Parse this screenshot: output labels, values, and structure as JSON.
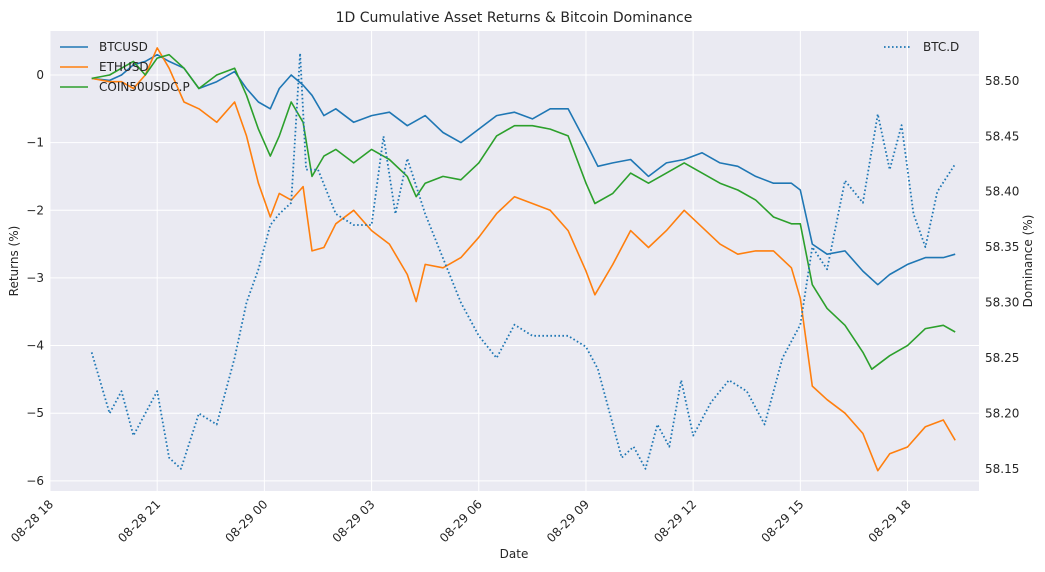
{
  "chart_data": {
    "type": "line",
    "title": "1D Cumulative Asset Returns & Bitcoin Dominance",
    "xlabel": "Date",
    "ylabel_left": "Returns (%)",
    "ylabel_right": "Dominance (%)",
    "grid": true,
    "legend_left_placement": "top-left",
    "legend_right_placement": "top-right",
    "background_color": "#eaeaf2",
    "x_range": [
      "08-28 18:00",
      "08-29 20:00"
    ],
    "ylim_left": [
      -6.15,
      0.65
    ],
    "ylim_right": [
      58.13,
      58.545
    ],
    "x_ticks": [
      "08-28 18",
      "08-28 21",
      "08-29 00",
      "08-29 03",
      "08-29 06",
      "08-29 09",
      "08-29 12",
      "08-29 15",
      "08-29 18"
    ],
    "y_ticks_left": [
      "0",
      "−1",
      "−2",
      "−3",
      "−4",
      "−5",
      "−6"
    ],
    "y_ticks_right": [
      "58.50",
      "58.45",
      "58.40",
      "58.35",
      "58.30",
      "58.25",
      "58.20",
      "58.15"
    ],
    "series": [
      {
        "name": "BTCUSD",
        "axis": "left",
        "color": "#1f77b4",
        "style": "solid",
        "points": [
          [
            "08-28 19:10",
            -0.05
          ],
          [
            "08-28 19:40",
            -0.08
          ],
          [
            "08-28 20:00",
            0.0
          ],
          [
            "08-28 20:20",
            0.15
          ],
          [
            "08-28 20:40",
            0.2
          ],
          [
            "08-28 21:00",
            0.3
          ],
          [
            "08-28 21:20",
            0.2
          ],
          [
            "08-28 21:45",
            0.1
          ],
          [
            "08-28 22:10",
            -0.2
          ],
          [
            "08-28 22:40",
            -0.1
          ],
          [
            "08-28 23:10",
            0.05
          ],
          [
            "08-28 23:30",
            -0.2
          ],
          [
            "08-28 23:50",
            -0.4
          ],
          [
            "08-29 00:10",
            -0.5
          ],
          [
            "08-29 00:25",
            -0.2
          ],
          [
            "08-29 00:45",
            0.0
          ],
          [
            "08-29 01:05",
            -0.15
          ],
          [
            "08-29 01:20",
            -0.3
          ],
          [
            "08-29 01:40",
            -0.6
          ],
          [
            "08-29 02:00",
            -0.5
          ],
          [
            "08-29 02:30",
            -0.7
          ],
          [
            "08-29 03:00",
            -0.6
          ],
          [
            "08-29 03:30",
            -0.55
          ],
          [
            "08-29 04:00",
            -0.75
          ],
          [
            "08-29 04:30",
            -0.6
          ],
          [
            "08-29 05:00",
            -0.85
          ],
          [
            "08-29 05:30",
            -1.0
          ],
          [
            "08-29 06:00",
            -0.8
          ],
          [
            "08-29 06:30",
            -0.6
          ],
          [
            "08-29 07:00",
            -0.55
          ],
          [
            "08-29 07:30",
            -0.65
          ],
          [
            "08-29 08:00",
            -0.5
          ],
          [
            "08-29 08:30",
            -0.5
          ],
          [
            "08-29 09:00",
            -1.0
          ],
          [
            "08-29 09:20",
            -1.35
          ],
          [
            "08-29 09:45",
            -1.3
          ],
          [
            "08-29 10:15",
            -1.25
          ],
          [
            "08-29 10:45",
            -1.5
          ],
          [
            "08-29 11:15",
            -1.3
          ],
          [
            "08-29 11:45",
            -1.25
          ],
          [
            "08-29 12:15",
            -1.15
          ],
          [
            "08-29 12:45",
            -1.3
          ],
          [
            "08-29 13:15",
            -1.35
          ],
          [
            "08-29 13:45",
            -1.5
          ],
          [
            "08-29 14:15",
            -1.6
          ],
          [
            "08-29 14:45",
            -1.6
          ],
          [
            "08-29 15:00",
            -1.7
          ],
          [
            "08-29 15:20",
            -2.5
          ],
          [
            "08-29 15:45",
            -2.65
          ],
          [
            "08-29 16:15",
            -2.6
          ],
          [
            "08-29 16:45",
            -2.9
          ],
          [
            "08-29 17:10",
            -3.1
          ],
          [
            "08-29 17:30",
            -2.95
          ],
          [
            "08-29 18:00",
            -2.8
          ],
          [
            "08-29 18:30",
            -2.7
          ],
          [
            "08-29 19:00",
            -2.7
          ],
          [
            "08-29 19:20",
            -2.65
          ]
        ]
      },
      {
        "name": "ETHUSD",
        "axis": "left",
        "color": "#ff7f0e",
        "style": "solid",
        "points": [
          [
            "08-28 19:10",
            -0.05
          ],
          [
            "08-28 19:40",
            -0.1
          ],
          [
            "08-28 20:00",
            -0.1
          ],
          [
            "08-28 20:20",
            -0.2
          ],
          [
            "08-28 20:40",
            0.0
          ],
          [
            "08-28 21:00",
            0.4
          ],
          [
            "08-28 21:20",
            0.1
          ],
          [
            "08-28 21:45",
            -0.4
          ],
          [
            "08-28 22:10",
            -0.5
          ],
          [
            "08-28 22:40",
            -0.7
          ],
          [
            "08-28 23:10",
            -0.4
          ],
          [
            "08-28 23:30",
            -0.9
          ],
          [
            "08-28 23:50",
            -1.6
          ],
          [
            "08-29 00:10",
            -2.1
          ],
          [
            "08-29 00:25",
            -1.75
          ],
          [
            "08-29 00:45",
            -1.85
          ],
          [
            "08-29 01:05",
            -1.65
          ],
          [
            "08-29 01:20",
            -2.6
          ],
          [
            "08-29 01:40",
            -2.55
          ],
          [
            "08-29 02:00",
            -2.2
          ],
          [
            "08-29 02:30",
            -2.0
          ],
          [
            "08-29 03:00",
            -2.3
          ],
          [
            "08-29 03:30",
            -2.5
          ],
          [
            "08-29 04:00",
            -2.95
          ],
          [
            "08-29 04:15",
            -3.35
          ],
          [
            "08-29 04:30",
            -2.8
          ],
          [
            "08-29 05:00",
            -2.85
          ],
          [
            "08-29 05:30",
            -2.7
          ],
          [
            "08-29 06:00",
            -2.4
          ],
          [
            "08-29 06:30",
            -2.05
          ],
          [
            "08-29 07:00",
            -1.8
          ],
          [
            "08-29 07:30",
            -1.9
          ],
          [
            "08-29 08:00",
            -2.0
          ],
          [
            "08-29 08:30",
            -2.3
          ],
          [
            "08-29 09:00",
            -2.9
          ],
          [
            "08-29 09:15",
            -3.25
          ],
          [
            "08-29 09:45",
            -2.8
          ],
          [
            "08-29 10:15",
            -2.3
          ],
          [
            "08-29 10:45",
            -2.55
          ],
          [
            "08-29 11:15",
            -2.3
          ],
          [
            "08-29 11:45",
            -2.0
          ],
          [
            "08-29 12:15",
            -2.25
          ],
          [
            "08-29 12:45",
            -2.5
          ],
          [
            "08-29 13:15",
            -2.65
          ],
          [
            "08-29 13:45",
            -2.6
          ],
          [
            "08-29 14:15",
            -2.6
          ],
          [
            "08-29 14:45",
            -2.85
          ],
          [
            "08-29 15:00",
            -3.3
          ],
          [
            "08-29 15:20",
            -4.6
          ],
          [
            "08-29 15:45",
            -4.8
          ],
          [
            "08-29 16:15",
            -5.0
          ],
          [
            "08-29 16:45",
            -5.3
          ],
          [
            "08-29 17:10",
            -5.85
          ],
          [
            "08-29 17:30",
            -5.6
          ],
          [
            "08-29 18:00",
            -5.5
          ],
          [
            "08-29 18:30",
            -5.2
          ],
          [
            "08-29 19:00",
            -5.1
          ],
          [
            "08-29 19:20",
            -5.4
          ]
        ]
      },
      {
        "name": "COIN50USDC.P",
        "axis": "left",
        "color": "#2ca02c",
        "style": "solid",
        "points": [
          [
            "08-28 19:10",
            -0.05
          ],
          [
            "08-28 19:40",
            0.0
          ],
          [
            "08-28 20:00",
            0.1
          ],
          [
            "08-28 20:20",
            0.2
          ],
          [
            "08-28 20:40",
            0.0
          ],
          [
            "08-28 21:00",
            0.25
          ],
          [
            "08-28 21:20",
            0.3
          ],
          [
            "08-28 21:45",
            0.1
          ],
          [
            "08-28 22:10",
            -0.2
          ],
          [
            "08-28 22:40",
            0.0
          ],
          [
            "08-28 23:10",
            0.1
          ],
          [
            "08-28 23:30",
            -0.3
          ],
          [
            "08-28 23:50",
            -0.8
          ],
          [
            "08-29 00:10",
            -1.2
          ],
          [
            "08-29 00:25",
            -0.9
          ],
          [
            "08-29 00:45",
            -0.4
          ],
          [
            "08-29 01:05",
            -0.7
          ],
          [
            "08-29 01:20",
            -1.5
          ],
          [
            "08-29 01:40",
            -1.2
          ],
          [
            "08-29 02:00",
            -1.1
          ],
          [
            "08-29 02:30",
            -1.3
          ],
          [
            "08-29 03:00",
            -1.1
          ],
          [
            "08-29 03:30",
            -1.25
          ],
          [
            "08-29 04:00",
            -1.5
          ],
          [
            "08-29 04:15",
            -1.8
          ],
          [
            "08-29 04:30",
            -1.6
          ],
          [
            "08-29 05:00",
            -1.5
          ],
          [
            "08-29 05:30",
            -1.55
          ],
          [
            "08-29 06:00",
            -1.3
          ],
          [
            "08-29 06:30",
            -0.9
          ],
          [
            "08-29 07:00",
            -0.75
          ],
          [
            "08-29 07:30",
            -0.75
          ],
          [
            "08-29 08:00",
            -0.8
          ],
          [
            "08-29 08:30",
            -0.9
          ],
          [
            "08-29 09:00",
            -1.6
          ],
          [
            "08-29 09:15",
            -1.9
          ],
          [
            "08-29 09:45",
            -1.75
          ],
          [
            "08-29 10:15",
            -1.45
          ],
          [
            "08-29 10:45",
            -1.6
          ],
          [
            "08-29 11:15",
            -1.45
          ],
          [
            "08-29 11:45",
            -1.3
          ],
          [
            "08-29 12:15",
            -1.45
          ],
          [
            "08-29 12:45",
            -1.6
          ],
          [
            "08-29 13:15",
            -1.7
          ],
          [
            "08-29 13:45",
            -1.85
          ],
          [
            "08-29 14:15",
            -2.1
          ],
          [
            "08-29 14:45",
            -2.2
          ],
          [
            "08-29 15:00",
            -2.2
          ],
          [
            "08-29 15:20",
            -3.1
          ],
          [
            "08-29 15:45",
            -3.45
          ],
          [
            "08-29 16:15",
            -3.7
          ],
          [
            "08-29 16:45",
            -4.1
          ],
          [
            "08-29 17:00",
            -4.35
          ],
          [
            "08-29 17:30",
            -4.15
          ],
          [
            "08-29 18:00",
            -4.0
          ],
          [
            "08-29 18:30",
            -3.75
          ],
          [
            "08-29 19:00",
            -3.7
          ],
          [
            "08-29 19:20",
            -3.8
          ]
        ]
      },
      {
        "name": "BTC.D",
        "axis": "right",
        "color": "#1f77b4",
        "style": "dotted",
        "points": [
          [
            "08-28 19:10",
            58.255
          ],
          [
            "08-28 19:40",
            58.2
          ],
          [
            "08-28 20:00",
            58.22
          ],
          [
            "08-28 20:20",
            58.18
          ],
          [
            "08-28 20:40",
            58.2
          ],
          [
            "08-28 21:00",
            58.22
          ],
          [
            "08-28 21:20",
            58.16
          ],
          [
            "08-28 21:40",
            58.15
          ],
          [
            "08-28 22:10",
            58.2
          ],
          [
            "08-28 22:40",
            58.19
          ],
          [
            "08-28 23:10",
            58.25
          ],
          [
            "08-28 23:30",
            58.3
          ],
          [
            "08-28 23:50",
            58.33
          ],
          [
            "08-29 00:10",
            58.37
          ],
          [
            "08-29 00:25",
            58.38
          ],
          [
            "08-29 00:45",
            58.39
          ],
          [
            "08-29 01:00",
            58.525
          ],
          [
            "08-29 01:10",
            58.42
          ],
          [
            "08-29 01:30",
            58.42
          ],
          [
            "08-29 02:00",
            58.38
          ],
          [
            "08-29 02:30",
            58.37
          ],
          [
            "08-29 03:00",
            58.37
          ],
          [
            "08-29 03:20",
            58.45
          ],
          [
            "08-29 03:40",
            58.38
          ],
          [
            "08-29 04:00",
            58.43
          ],
          [
            "08-29 04:30",
            58.38
          ],
          [
            "08-29 05:00",
            58.34
          ],
          [
            "08-29 05:30",
            58.3
          ],
          [
            "08-29 06:00",
            58.27
          ],
          [
            "08-29 06:30",
            58.25
          ],
          [
            "08-29 07:00",
            58.28
          ],
          [
            "08-29 07:30",
            58.27
          ],
          [
            "08-29 08:00",
            58.27
          ],
          [
            "08-29 08:30",
            58.27
          ],
          [
            "08-29 09:00",
            58.26
          ],
          [
            "08-29 09:20",
            58.24
          ],
          [
            "08-29 09:40",
            58.2
          ],
          [
            "08-29 10:00",
            58.16
          ],
          [
            "08-29 10:20",
            58.17
          ],
          [
            "08-29 10:40",
            58.15
          ],
          [
            "08-29 11:00",
            58.19
          ],
          [
            "08-29 11:20",
            58.17
          ],
          [
            "08-29 11:40",
            58.23
          ],
          [
            "08-29 12:00",
            58.18
          ],
          [
            "08-29 12:30",
            58.21
          ],
          [
            "08-29 13:00",
            58.23
          ],
          [
            "08-29 13:30",
            58.22
          ],
          [
            "08-29 14:00",
            58.19
          ],
          [
            "08-29 14:30",
            58.25
          ],
          [
            "08-29 15:00",
            58.28
          ],
          [
            "08-29 15:20",
            58.35
          ],
          [
            "08-29 15:45",
            58.33
          ],
          [
            "08-29 16:15",
            58.41
          ],
          [
            "08-29 16:45",
            58.39
          ],
          [
            "08-29 17:10",
            58.47
          ],
          [
            "08-29 17:30",
            58.42
          ],
          [
            "08-29 17:50",
            58.46
          ],
          [
            "08-29 18:10",
            58.38
          ],
          [
            "08-29 18:30",
            58.35
          ],
          [
            "08-29 18:50",
            58.4
          ],
          [
            "08-29 19:20",
            58.425
          ]
        ]
      }
    ]
  }
}
